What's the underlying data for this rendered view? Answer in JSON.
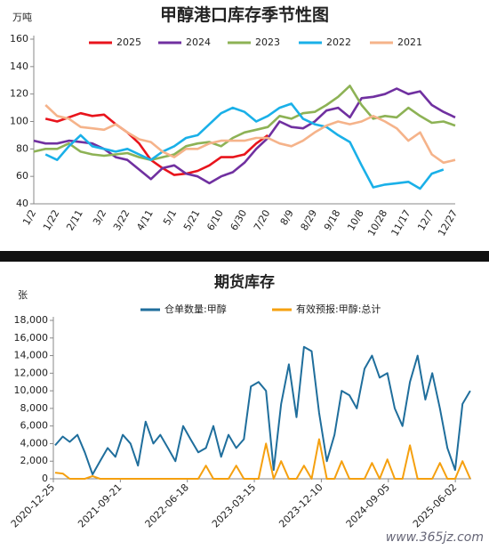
{
  "chart_data": [
    {
      "type": "line",
      "title": "甲醇港口库存季节性图",
      "y_unit": "万吨",
      "categories": [
        "1/2",
        null,
        "1/22",
        null,
        "2/11",
        null,
        "3/2",
        null,
        "3/22",
        null,
        "4/11",
        null,
        "5/1",
        null,
        "5/21",
        null,
        "6/10",
        null,
        "6/30",
        null,
        "7/20",
        null,
        "8/9",
        null,
        "8/29",
        null,
        "9/18",
        null,
        "10/8",
        null,
        "10/28",
        null,
        "11/17",
        null,
        "12/7",
        null,
        "12/27"
      ],
      "ylim": [
        40,
        160
      ],
      "yticks": [
        40,
        60,
        80,
        100,
        120,
        140,
        160
      ],
      "legend": "top",
      "series": [
        {
          "name": "2025",
          "color": "#e8141c",
          "values": [
            null,
            102,
            100,
            103,
            106,
            104,
            105,
            98,
            92,
            84,
            72,
            66,
            61,
            62,
            64,
            68,
            74,
            74,
            76,
            84,
            90,
            null,
            null,
            null,
            null,
            null,
            null,
            null,
            null,
            null,
            null,
            null,
            null,
            null,
            null,
            null,
            null
          ]
        },
        {
          "name": "2024",
          "color": "#7030a0",
          "values": [
            86,
            84,
            84,
            86,
            85,
            84,
            80,
            74,
            72,
            65,
            58,
            66,
            68,
            62,
            60,
            55,
            60,
            63,
            70,
            80,
            88,
            100,
            96,
            95,
            100,
            108,
            110,
            103,
            117,
            118,
            120,
            124,
            120,
            122,
            112,
            107,
            103
          ]
        },
        {
          "name": "2023",
          "color": "#8db255",
          "values": [
            78,
            80,
            80,
            84,
            78,
            76,
            75,
            76,
            77,
            74,
            72,
            74,
            76,
            82,
            84,
            85,
            82,
            88,
            92,
            94,
            96,
            104,
            102,
            106,
            107,
            112,
            118,
            126,
            112,
            102,
            104,
            103,
            110,
            104,
            99,
            100,
            97
          ]
        },
        {
          "name": "2022",
          "color": "#1ab0e8",
          "values": [
            null,
            76,
            72,
            82,
            90,
            82,
            80,
            78,
            80,
            76,
            72,
            78,
            82,
            88,
            90,
            98,
            106,
            110,
            107,
            100,
            104,
            110,
            113,
            102,
            98,
            96,
            90,
            85,
            68,
            52,
            54,
            55,
            56,
            51,
            62,
            65,
            null
          ]
        },
        {
          "name": "2021",
          "color": "#f5b38a",
          "values": [
            null,
            112,
            104,
            102,
            96,
            95,
            94,
            98,
            92,
            87,
            85,
            78,
            74,
            80,
            80,
            84,
            86,
            86,
            86,
            88,
            88,
            84,
            82,
            86,
            92,
            97,
            100,
            98,
            100,
            104,
            100,
            95,
            86,
            92,
            76,
            70,
            72
          ]
        }
      ]
    },
    {
      "type": "line",
      "title": "期货库存",
      "y_unit": "张",
      "x": [
        "2021-01-01",
        "2021-02-01",
        "2021-03-01",
        "2021-04-01",
        "2021-05-01",
        "2021-06-01",
        "2021-07-01",
        "2021-08-01",
        "2021-09-01",
        "2021-10-01",
        "2021-11-01",
        "2021-12-01",
        "2022-01-01",
        "2022-02-01",
        "2022-03-01",
        "2022-04-01",
        "2022-05-01",
        "2022-06-01",
        "2022-07-01",
        "2022-08-01",
        "2022-09-01",
        "2022-10-01",
        "2022-11-01",
        "2022-12-01",
        "2023-01-01",
        "2023-02-01",
        "2023-03-01",
        "2023-04-01",
        "2023-05-01",
        "2023-06-01",
        "2023-07-01",
        "2023-08-01",
        "2023-09-01",
        "2023-10-01",
        "2023-11-01",
        "2023-12-01",
        "2024-01-01",
        "2024-02-01",
        "2024-03-01",
        "2024-04-01",
        "2024-05-01",
        "2024-06-01",
        "2024-07-01",
        "2024-08-01",
        "2024-09-01",
        "2024-10-01",
        "2024-11-01",
        "2024-12-01",
        "2025-01-01",
        "2025-02-01",
        "2025-03-01",
        "2025-04-01",
        "2025-05-01",
        "2025-06-01",
        "2025-07-01",
        "2025-08-01"
      ],
      "xlim": [
        "2020-12-25",
        "2025-08-05"
      ],
      "xticks": [
        "2020-12-25",
        "2021-09-21",
        "2022-06-18",
        "2023-03-15",
        "2023-12-10",
        "2024-09-05",
        "2025-06-02"
      ],
      "ylim": [
        0,
        18000
      ],
      "yticks": [
        0,
        {
          "value": 2000,
          "label": "2,000"
        },
        {
          "value": 4000,
          "label": "4,000"
        },
        {
          "value": 6000,
          "label": "6,000"
        },
        {
          "value": 8000,
          "label": "8,000"
        },
        {
          "value": 10000,
          "label": "10,000"
        },
        {
          "value": 12000,
          "label": "12,000"
        },
        {
          "value": 14000,
          "label": "14,000"
        },
        {
          "value": 16000,
          "label": "16,000"
        },
        {
          "value": 18000,
          "label": "18,000"
        }
      ],
      "legend": "top",
      "series": [
        {
          "name": "仓单数量:甲醇",
          "color": "#1f6e9c",
          "values": [
            3800,
            4800,
            4200,
            5000,
            3000,
            500,
            2000,
            3500,
            2500,
            5000,
            4000,
            1500,
            6500,
            4000,
            5000,
            3500,
            2000,
            6000,
            4500,
            3000,
            3500,
            6000,
            2500,
            5000,
            3500,
            4500,
            10500,
            11000,
            10000,
            1000,
            8500,
            13000,
            7000,
            15000,
            14500,
            7500,
            2000,
            5000,
            10000,
            9500,
            8000,
            12500,
            14000,
            11500,
            12000,
            8000,
            6000,
            11000,
            14000,
            9000,
            12000,
            8000,
            3500,
            1000,
            8500,
            10000
          ]
        },
        {
          "name": "有效预报:甲醇:总计",
          "color": "#f5a00f",
          "values": [
            700,
            600,
            0,
            0,
            0,
            300,
            0,
            0,
            0,
            0,
            0,
            0,
            0,
            0,
            0,
            0,
            0,
            0,
            0,
            0,
            1500,
            0,
            0,
            0,
            1500,
            0,
            0,
            0,
            4000,
            0,
            2000,
            0,
            0,
            1500,
            0,
            4500,
            0,
            0,
            2000,
            0,
            0,
            0,
            1800,
            0,
            2200,
            0,
            0,
            3800,
            0,
            0,
            0,
            1800,
            0,
            0,
            2000,
            0
          ]
        }
      ]
    }
  ],
  "watermark": "www.365jz.com"
}
